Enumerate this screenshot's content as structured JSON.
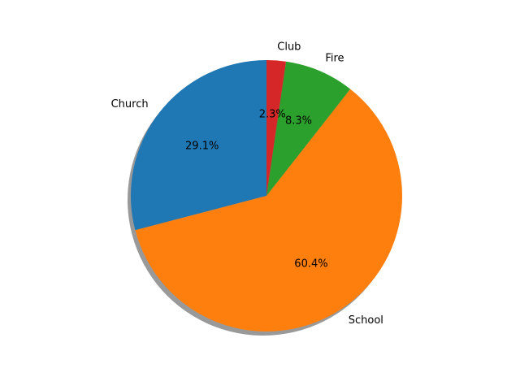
{
  "chart_data": {
    "type": "pie",
    "categories": [
      "Church",
      "School",
      "Fire",
      "Club"
    ],
    "values": [
      29.1,
      60.4,
      8.3,
      2.3
    ],
    "percent_labels": [
      "29.1%",
      "60.4%",
      "8.3%",
      "2.3%"
    ],
    "colors": [
      "#1f77b4",
      "#ff7f0e",
      "#2ca02c",
      "#d62728"
    ],
    "start_angle_deg": 90,
    "direction": "counterclockwise",
    "shadow": true,
    "title": "",
    "legend": "none"
  }
}
